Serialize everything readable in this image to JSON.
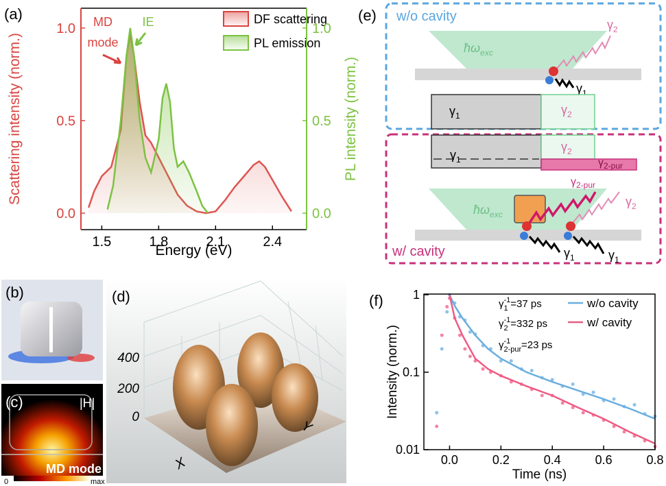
{
  "chart_data": [
    {
      "type": "area",
      "panel_label": "(a)",
      "xlabel": "Energy (eV)",
      "ylabel": "Scattering intensity (norm.)",
      "y2label": "PL intensity (norm.)",
      "xlim": [
        1.39,
        2.58
      ],
      "xticks": [
        1.5,
        1.8,
        2.1,
        2.4
      ],
      "ylim": [
        -0.089,
        1.107
      ],
      "yticks": [
        {
          "value": 0,
          "label": "0.0"
        },
        0.5,
        {
          "value": 1,
          "label": "1.0"
        }
      ],
      "y2lim": [
        -0.089,
        1.107
      ],
      "y2ticks": [
        {
          "value": 0,
          "label": "0.0"
        },
        0.5,
        {
          "value": 1,
          "label": "1.0"
        }
      ],
      "series": [
        {
          "name": "DF scattering",
          "color": "#d9443f",
          "x": [
            1.43,
            1.46,
            1.5,
            1.55,
            1.6,
            1.63,
            1.65,
            1.67,
            1.7,
            1.73,
            1.76,
            1.8,
            1.85,
            1.9,
            1.95,
            2.0,
            2.05,
            2.1,
            2.15,
            2.2,
            2.25,
            2.3,
            2.33,
            2.36,
            2.4,
            2.45,
            2.5
          ],
          "values": [
            0.03,
            0.12,
            0.2,
            0.25,
            0.45,
            0.85,
            0.97,
            0.85,
            0.6,
            0.42,
            0.38,
            0.3,
            0.2,
            0.1,
            0.04,
            0.01,
            0.0,
            0.01,
            0.07,
            0.14,
            0.2,
            0.26,
            0.28,
            0.25,
            0.18,
            0.09,
            0.01
          ]
        },
        {
          "name": "PL emission",
          "color": "#7cc242",
          "axis": "y2",
          "x": [
            1.53,
            1.56,
            1.6,
            1.63,
            1.65,
            1.67,
            1.7,
            1.73,
            1.76,
            1.8,
            1.82,
            1.84,
            1.86,
            1.88,
            1.9,
            1.93,
            1.96,
            2.0,
            2.03,
            2.06
          ],
          "values": [
            0.02,
            0.15,
            0.5,
            0.85,
            1.0,
            0.85,
            0.5,
            0.3,
            0.22,
            0.4,
            0.62,
            0.7,
            0.6,
            0.35,
            0.25,
            0.28,
            0.22,
            0.12,
            0.04,
            0.0
          ]
        }
      ],
      "annotations": [
        {
          "text": "MD",
          "color": "#d9443f"
        },
        {
          "text": "mode",
          "color": "#d9443f"
        },
        {
          "text": "IE",
          "color": "#7cc242"
        }
      ]
    },
    {
      "type": "line",
      "panel_label": "(f)",
      "log_y": true,
      "xlabel": "Time (ns)",
      "ylabel": "Intensity (norm.)",
      "xlim": [
        -0.1,
        0.8
      ],
      "xticks": [
        {
          "value": 0,
          "label": "0.0"
        },
        0.2,
        0.4,
        0.6,
        0.8
      ],
      "ylim": [
        0.01,
        1.02
      ],
      "yticks": [
        1,
        0.1,
        0.01
      ],
      "series": [
        {
          "name": "w/o cavity",
          "color": "#6aaee0",
          "x": [
            0,
            0.02,
            0.05,
            0.1,
            0.15,
            0.2,
            0.3,
            0.4,
            0.5,
            0.6,
            0.7,
            0.8
          ],
          "values": [
            1,
            0.72,
            0.5,
            0.3,
            0.2,
            0.15,
            0.1,
            0.075,
            0.058,
            0.045,
            0.034,
            0.025
          ],
          "points_x": [
            -0.05,
            -0.03,
            -0.01,
            0.0,
            0.02,
            0.04,
            0.06,
            0.08,
            0.1,
            0.13,
            0.16,
            0.2,
            0.24,
            0.28,
            0.32,
            0.36,
            0.4,
            0.44,
            0.48,
            0.52,
            0.56,
            0.6,
            0.64,
            0.68,
            0.72,
            0.76,
            0.8
          ],
          "points_y": [
            0.03,
            0.2,
            0.6,
            1.0,
            0.78,
            0.52,
            0.47,
            0.33,
            0.31,
            0.22,
            0.2,
            0.14,
            0.14,
            0.11,
            0.105,
            0.085,
            0.08,
            0.066,
            0.07,
            0.052,
            0.055,
            0.043,
            0.045,
            0.036,
            0.038,
            0.029,
            0.027
          ]
        },
        {
          "name": "w/ cavity",
          "color": "#ef5a84",
          "x": [
            0,
            0.02,
            0.05,
            0.1,
            0.15,
            0.2,
            0.3,
            0.4,
            0.5,
            0.6,
            0.7,
            0.8
          ],
          "values": [
            1,
            0.5,
            0.3,
            0.15,
            0.11,
            0.09,
            0.066,
            0.05,
            0.035,
            0.025,
            0.017,
            0.012
          ],
          "points_x": [
            -0.05,
            -0.03,
            -0.01,
            0.0,
            0.02,
            0.04,
            0.06,
            0.08,
            0.1,
            0.13,
            0.16,
            0.2,
            0.24,
            0.28,
            0.32,
            0.36,
            0.4,
            0.44,
            0.48,
            0.52,
            0.56,
            0.6,
            0.64,
            0.68,
            0.72,
            0.76,
            0.8
          ],
          "points_y": [
            0.02,
            0.3,
            0.7,
            0.9,
            0.5,
            0.3,
            0.2,
            0.16,
            0.14,
            0.11,
            0.1,
            0.09,
            0.075,
            0.07,
            0.06,
            0.05,
            0.05,
            0.04,
            0.035,
            0.03,
            0.028,
            0.024,
            0.02,
            0.017,
            0.015,
            0.013,
            0.011
          ]
        }
      ],
      "annotations": [
        {
          "symbol": "γ",
          "sub": "1",
          "sup": "-1",
          "rest": "=37 ps"
        },
        {
          "symbol": "γ",
          "sub": "2",
          "sup": "-1",
          "rest": "=332 ps"
        },
        {
          "symbol": "γ",
          "sub": "2-pur",
          "sup": "-1",
          "rest": "=23 ps"
        }
      ]
    }
  ],
  "panels": {
    "b": {
      "label": "(b)"
    },
    "c": {
      "label": "(c)",
      "field": "|H|",
      "mode": "MD mode",
      "scale_min": "0",
      "scale_max": "max"
    },
    "d": {
      "label": "(d)",
      "zticks": [
        400,
        200,
        0
      ],
      "x_axis": "X",
      "y_axis": "Y"
    },
    "e": {
      "label": "(e)",
      "top": {
        "title": "w/o cavity",
        "excitation": {
          "symbol": "ħω",
          "sub": "exc"
        },
        "emission": {
          "symbol": "γ",
          "sub": "2"
        },
        "decay": {
          "symbol": "γ",
          "sub": "1"
        },
        "bar_1": {
          "symbol": "γ",
          "sub": "1"
        },
        "bar_2": {
          "symbol": "γ",
          "sub": "2"
        }
      },
      "bottom": {
        "title": "w/ cavity",
        "excitation": {
          "symbol": "ħω",
          "sub": "exc"
        },
        "bar_1": {
          "symbol": "γ",
          "sub": "1"
        },
        "bar_2": {
          "symbol": "γ",
          "sub": "2"
        },
        "bar_3": {
          "symbol": "γ",
          "sub": "2-pur"
        },
        "emission_pur": {
          "symbol": "γ",
          "sub": "2-pur"
        },
        "emission": {
          "symbol": "γ",
          "sub": "2"
        },
        "decay_1": {
          "symbol": "γ",
          "sub": "1"
        },
        "decay_2": {
          "symbol": "γ",
          "sub": "1"
        }
      }
    }
  }
}
